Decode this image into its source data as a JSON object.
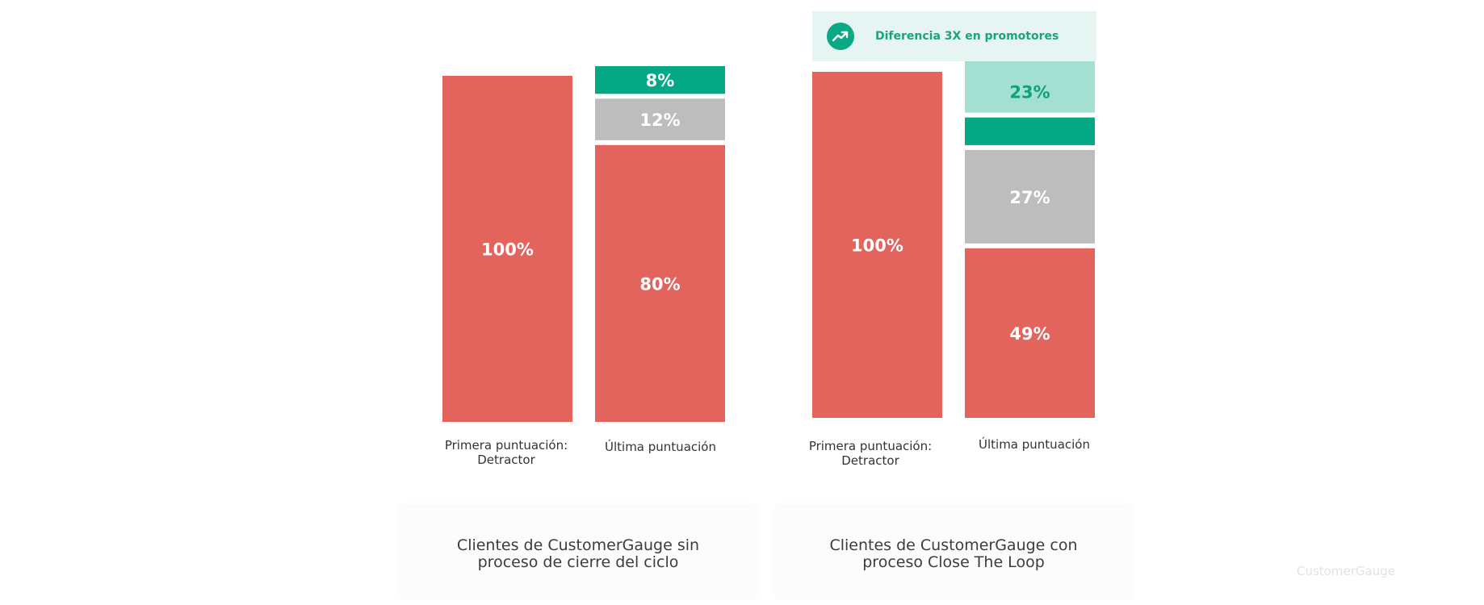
{
  "chart_data": [
    {
      "type": "bar",
      "title": "Clientes de CustomerGauge sin proceso de cierre del ciclo",
      "categories": [
        "Primera puntuación: Detractor",
        "Última puntuación"
      ],
      "series": [
        {
          "values": [
            100,
            80
          ],
          "color": "#e3635d"
        },
        {
          "values": [
            0,
            12
          ],
          "color": "#bdbdbd"
        },
        {
          "values": [
            0,
            8
          ],
          "color": "#04a884"
        }
      ],
      "data_labels": [
        [
          "100%"
        ],
        [
          "80%",
          "12%",
          "8%"
        ]
      ]
    },
    {
      "type": "bar",
      "title": "Clientes de CustomerGauge con proceso Close The Loop",
      "annotation": "Diferencia 3X en promotores",
      "categories": [
        "Primera puntuación: Detractor",
        "Última puntuación"
      ],
      "series": [
        {
          "values": [
            100,
            49
          ],
          "color": "#e3635d"
        },
        {
          "values": [
            0,
            27
          ],
          "color": "#bdbdbd"
        },
        {
          "values": [
            0,
            8
          ],
          "color": "#04a884"
        },
        {
          "values": [
            0,
            15
          ],
          "color": "#a3e0d2"
        }
      ],
      "data_labels": [
        [
          "100%"
        ],
        [
          "49%",
          "27%",
          "23%"
        ]
      ]
    }
  ],
  "labels": {
    "left_cat1_line1": "Primera puntuación:",
    "left_cat1_line2": "Detractor",
    "left_cat2": "Última puntuación",
    "right_cat1_line1": "Primera puntuación:",
    "right_cat1_line2": "Detractor",
    "right_cat2": "Última puntuación",
    "left_caption": "Clientes de CustomerGauge sin proceso de cierre del ciclo",
    "right_caption": "Clientes de CustomerGauge con proceso Close The Loop",
    "callout": "Diferencia 3X en promotores",
    "callout_icon": "trending-up-icon",
    "watermark": "CustomerGauge"
  }
}
